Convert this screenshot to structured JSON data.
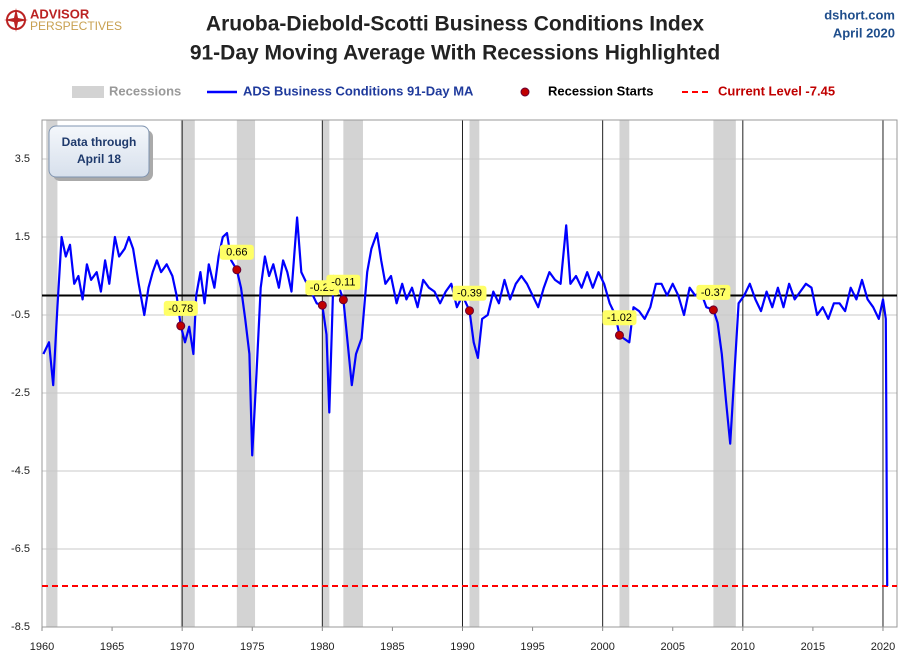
{
  "header": {
    "logo_top": "ADVISOR",
    "logo_bottom": "PERSPECTIVES",
    "source": "dshort.com",
    "date": "April 2020"
  },
  "annotation": [
    "Data through",
    "April 18"
  ],
  "chart_data": {
    "type": "line",
    "title": "Aruoba-Diebold-Scotti Business Conditions Index",
    "subtitle": "91-Day Moving Average With Recessions Highlighted",
    "xlim": [
      1960,
      2021
    ],
    "xticks": [
      1960,
      1965,
      1970,
      1975,
      1980,
      1985,
      1990,
      1995,
      2000,
      2005,
      2010,
      2015,
      2020
    ],
    "ylim": [
      -8.5,
      4.5
    ],
    "yticks": [
      3.5,
      1.5,
      -0.5,
      -2.5,
      -4.5,
      -6.5,
      -8.5
    ],
    "grid": true,
    "baseline": 0,
    "recessions": {
      "name": "Recessions",
      "color": "#d3d3d3",
      "spans": [
        [
          1960.3,
          1961.1
        ],
        [
          1969.9,
          1970.9
        ],
        [
          1973.9,
          1975.2
        ],
        [
          1980.0,
          1980.5
        ],
        [
          1981.5,
          1982.9
        ],
        [
          1990.5,
          1991.2
        ],
        [
          2001.2,
          2001.9
        ],
        [
          2007.9,
          2009.5
        ]
      ]
    },
    "recession_starts": {
      "name": "Recession Starts",
      "color": "#c00000",
      "x": [
        1969.9,
        1973.9,
        1980.0,
        1981.5,
        1990.5,
        2001.2,
        2007.9
      ],
      "values": [
        -0.78,
        0.66,
        -0.25,
        -0.11,
        -0.39,
        -1.02,
        -0.37
      ]
    },
    "current_level": {
      "name": "Current Level -7.45",
      "value": -7.45,
      "color": "#ff0000"
    },
    "x": [
      1960.1,
      1960.5,
      1960.8,
      1961.1,
      1961.4,
      1961.7,
      1962.0,
      1962.3,
      1962.6,
      1962.9,
      1963.2,
      1963.5,
      1963.9,
      1964.2,
      1964.5,
      1964.8,
      1965.2,
      1965.5,
      1965.9,
      1966.2,
      1966.5,
      1966.9,
      1967.3,
      1967.6,
      1967.9,
      1968.2,
      1968.5,
      1968.9,
      1969.3,
      1969.6,
      1969.9,
      1970.2,
      1970.5,
      1970.8,
      1971.0,
      1971.3,
      1971.6,
      1971.9,
      1972.3,
      1972.6,
      1972.9,
      1973.2,
      1973.5,
      1973.9,
      1974.2,
      1974.5,
      1974.8,
      1975.0,
      1975.3,
      1975.6,
      1975.9,
      1976.2,
      1976.5,
      1976.9,
      1977.2,
      1977.5,
      1977.8,
      1978.2,
      1978.5,
      1978.9,
      1979.2,
      1979.6,
      1980.0,
      1980.3,
      1980.5,
      1980.8,
      1981.1,
      1981.5,
      1981.8,
      1982.1,
      1982.4,
      1982.8,
      1983.2,
      1983.5,
      1983.9,
      1984.2,
      1984.5,
      1984.9,
      1985.3,
      1985.7,
      1986.0,
      1986.4,
      1986.8,
      1987.2,
      1987.6,
      1988.0,
      1988.4,
      1988.8,
      1989.2,
      1989.6,
      1990.0,
      1990.5,
      1990.8,
      1991.1,
      1991.4,
      1991.8,
      1992.2,
      1992.6,
      1993.0,
      1993.4,
      1993.8,
      1994.2,
      1994.6,
      1995.0,
      1995.4,
      1995.8,
      1996.2,
      1996.6,
      1997.0,
      1997.4,
      1997.7,
      1998.1,
      1998.5,
      1998.9,
      1999.3,
      1999.7,
      2000.1,
      2000.5,
      2000.9,
      2001.2,
      2001.5,
      2001.9,
      2002.2,
      2002.6,
      2003.0,
      2003.4,
      2003.8,
      2004.2,
      2004.6,
      2005.0,
      2005.4,
      2005.8,
      2006.2,
      2006.6,
      2007.0,
      2007.4,
      2007.9,
      2008.2,
      2008.5,
      2008.8,
      2009.1,
      2009.4,
      2009.7,
      2010.1,
      2010.5,
      2010.9,
      2011.3,
      2011.7,
      2012.1,
      2012.5,
      2012.9,
      2013.3,
      2013.7,
      2014.1,
      2014.5,
      2014.9,
      2015.3,
      2015.7,
      2016.1,
      2016.5,
      2016.9,
      2017.3,
      2017.7,
      2018.1,
      2018.5,
      2018.9,
      2019.3,
      2019.7,
      2020.0,
      2020.2,
      2020.3
    ],
    "series": [
      {
        "name": "ADS Business Conditions 91-Day MA",
        "color": "#0000ff",
        "values": [
          -1.5,
          -1.2,
          -2.3,
          -0.3,
          1.5,
          1.0,
          1.3,
          0.3,
          0.5,
          -0.1,
          0.8,
          0.4,
          0.6,
          0.1,
          0.9,
          0.3,
          1.5,
          1.0,
          1.2,
          1.5,
          1.2,
          0.3,
          -0.5,
          0.2,
          0.6,
          0.9,
          0.6,
          0.8,
          0.5,
          0.0,
          -0.78,
          -1.2,
          -0.8,
          -1.5,
          0.0,
          0.6,
          -0.2,
          0.8,
          0.2,
          1.0,
          1.5,
          1.6,
          0.9,
          0.66,
          0.2,
          -0.6,
          -1.5,
          -4.1,
          -2.0,
          0.2,
          1.0,
          0.5,
          0.8,
          0.2,
          0.9,
          0.6,
          0.1,
          2.0,
          0.6,
          0.3,
          0.1,
          -0.2,
          -0.25,
          -1.0,
          -3.0,
          0.5,
          0.3,
          -0.11,
          -1.2,
          -2.3,
          -1.5,
          -1.1,
          0.6,
          1.2,
          1.6,
          0.9,
          0.3,
          0.5,
          -0.2,
          0.3,
          -0.1,
          0.2,
          -0.3,
          0.4,
          0.2,
          0.1,
          -0.2,
          0.1,
          0.3,
          -0.3,
          0.0,
          -0.39,
          -1.2,
          -1.6,
          -0.6,
          -0.5,
          0.1,
          -0.2,
          0.4,
          -0.1,
          0.3,
          0.5,
          0.3,
          0.0,
          -0.3,
          0.2,
          0.6,
          0.4,
          0.3,
          1.8,
          0.3,
          0.5,
          0.2,
          0.6,
          0.2,
          0.6,
          0.3,
          -0.2,
          -0.5,
          -1.02,
          -1.1,
          -1.2,
          -0.3,
          -0.4,
          -0.6,
          -0.3,
          0.3,
          0.3,
          0.0,
          0.3,
          0.0,
          -0.5,
          0.2,
          0.0,
          0.1,
          -0.3,
          -0.37,
          -0.7,
          -1.5,
          -2.7,
          -3.8,
          -2.0,
          -0.2,
          0.0,
          0.3,
          -0.1,
          -0.4,
          0.1,
          -0.3,
          0.2,
          -0.3,
          0.3,
          -0.1,
          0.1,
          0.3,
          0.2,
          -0.5,
          -0.3,
          -0.6,
          -0.2,
          -0.2,
          -0.4,
          0.2,
          -0.1,
          0.4,
          -0.1,
          -0.3,
          -0.6,
          -0.1,
          -0.6,
          -7.45
        ]
      }
    ]
  }
}
